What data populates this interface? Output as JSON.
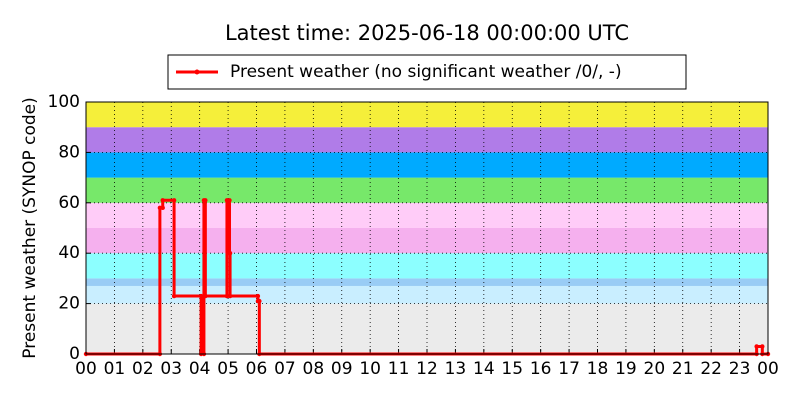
{
  "chart_data": {
    "type": "line",
    "title": "Latest time: 2025-06-18 00:00:00 UTC",
    "y_label": "Present weather (SYNOP code)",
    "xlim": [
      0,
      24
    ],
    "xticks": [
      {
        "value": 0,
        "label": "00"
      },
      {
        "value": 1,
        "label": "01"
      },
      {
        "value": 2,
        "label": "02"
      },
      {
        "value": 3,
        "label": "03"
      },
      {
        "value": 4,
        "label": "04"
      },
      {
        "value": 5,
        "label": "05"
      },
      {
        "value": 6,
        "label": "06"
      },
      {
        "value": 7,
        "label": "07"
      },
      {
        "value": 8,
        "label": "08"
      },
      {
        "value": 9,
        "label": "09"
      },
      {
        "value": 10,
        "label": "10"
      },
      {
        "value": 11,
        "label": "11"
      },
      {
        "value": 12,
        "label": "12"
      },
      {
        "value": 13,
        "label": "13"
      },
      {
        "value": 14,
        "label": "14"
      },
      {
        "value": 15,
        "label": "15"
      },
      {
        "value": 16,
        "label": "16"
      },
      {
        "value": 17,
        "label": "17"
      },
      {
        "value": 18,
        "label": "18"
      },
      {
        "value": 19,
        "label": "19"
      },
      {
        "value": 20,
        "label": "20"
      },
      {
        "value": 21,
        "label": "21"
      },
      {
        "value": 22,
        "label": "22"
      },
      {
        "value": 23,
        "label": "23"
      },
      {
        "value": 24,
        "label": "00"
      }
    ],
    "ylim": [
      0,
      100
    ],
    "yticks": [
      0,
      20,
      40,
      60,
      80,
      100
    ],
    "grid": true,
    "bands": [
      {
        "range": [
          0,
          20
        ],
        "color": "#ebebeb"
      },
      {
        "range": [
          20,
          27
        ],
        "color": "#c9eeff"
      },
      {
        "range": [
          27,
          30
        ],
        "color": "#99ccf5"
      },
      {
        "range": [
          30,
          40
        ],
        "color": "#8cffff"
      },
      {
        "range": [
          40,
          50
        ],
        "color": "#f5b0ee"
      },
      {
        "range": [
          50,
          60
        ],
        "color": "#ffccf8"
      },
      {
        "range": [
          60,
          70
        ],
        "color": "#77e86a"
      },
      {
        "range": [
          70,
          80
        ],
        "color": "#00aaff"
      },
      {
        "range": [
          80,
          90
        ],
        "color": "#b07ce8"
      },
      {
        "range": [
          90,
          100
        ],
        "color": "#f5ef3a"
      }
    ],
    "series": [
      {
        "name": "Present weather (no significant weather /0/, -)",
        "color": "#ff0000",
        "x": [
          0,
          2.6,
          2.6,
          2.7,
          2.7,
          3.1,
          3.1,
          4.05,
          4.05,
          4.15,
          4.15,
          4.2,
          4.2,
          4.96,
          4.96,
          5.05,
          5.05,
          5.07,
          5.07,
          6.05,
          6.05,
          6.1,
          6.1,
          23.6,
          23.6,
          23.8,
          23.8,
          24
        ],
        "values": [
          0,
          0,
          58,
          58,
          61,
          61,
          23,
          23,
          0,
          0,
          61,
          61,
          23,
          23,
          61,
          61,
          40,
          40,
          23,
          23,
          21,
          21,
          0,
          0,
          3,
          3,
          0,
          0
        ]
      }
    ]
  }
}
